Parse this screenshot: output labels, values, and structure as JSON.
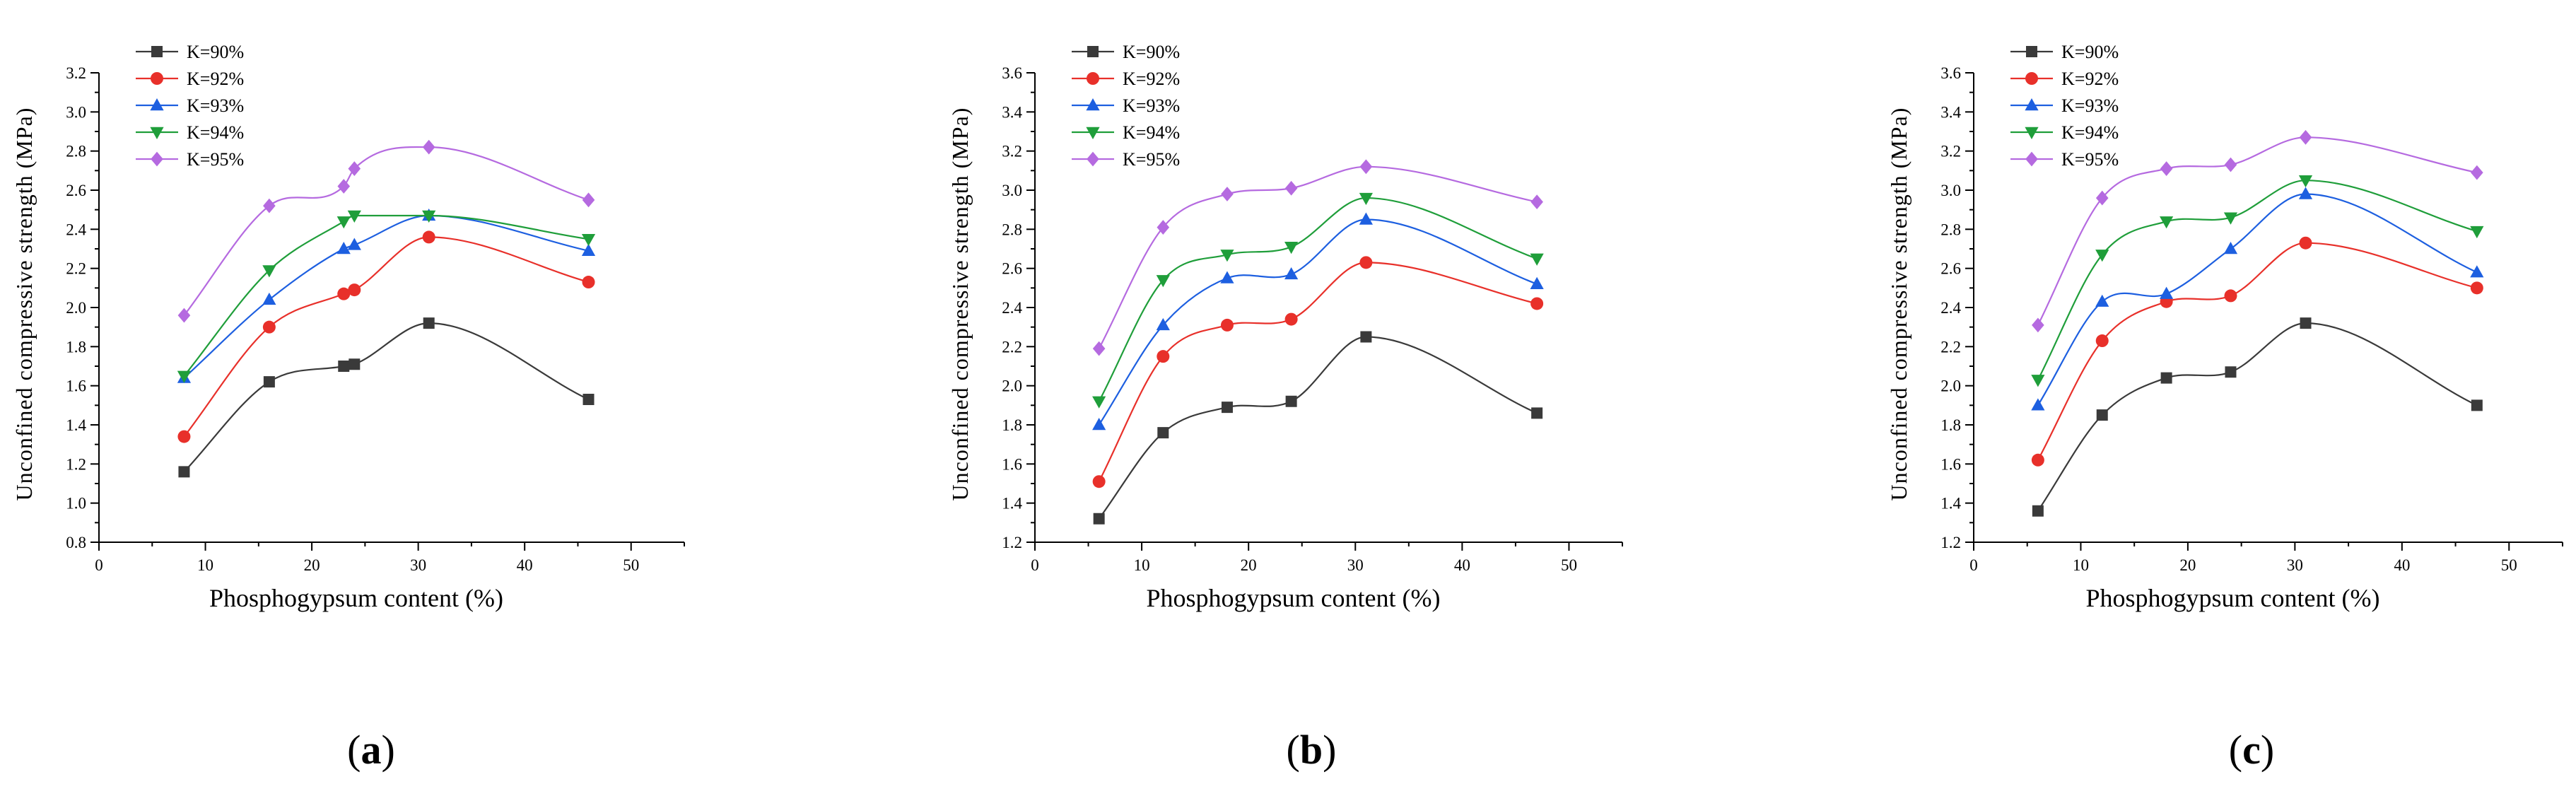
{
  "colors": {
    "K=90%": "#3a3a3a",
    "K=92%": "#e8302a",
    "K=93%": "#1d5fe0",
    "K=94%": "#1f9e3a",
    "K=95%": "#b56ae0"
  },
  "chart_data": [
    {
      "type": "line",
      "caption_letter": "a",
      "xlabel": "Phosphogypsum content (%)",
      "ylabel": "Unconfined compressive strength (MPa)",
      "xlim": [
        0,
        55
      ],
      "ylim": [
        0.8,
        3.2
      ],
      "xticks": [
        "0",
        "10",
        "20",
        "30",
        "40",
        "50"
      ],
      "yticks": [
        "0.8",
        "1.0",
        "1.2",
        "1.4",
        "1.6",
        "1.8",
        "2.0",
        "2.2",
        "2.4",
        "2.6",
        "2.8",
        "3.0",
        "3.2"
      ],
      "series": [
        {
          "name": "K=90%",
          "marker": "square",
          "x": [
            8,
            16,
            23,
            24,
            31,
            46
          ],
          "y": [
            1.16,
            1.62,
            1.7,
            1.71,
            1.92,
            1.53
          ]
        },
        {
          "name": "K=92%",
          "marker": "circle",
          "x": [
            8,
            16,
            23,
            24,
            31,
            46
          ],
          "y": [
            1.34,
            1.9,
            2.07,
            2.09,
            2.36,
            2.13
          ]
        },
        {
          "name": "K=93%",
          "marker": "triangle-up",
          "x": [
            8,
            16,
            23,
            24,
            31,
            46
          ],
          "y": [
            1.64,
            2.04,
            2.3,
            2.32,
            2.47,
            2.29
          ]
        },
        {
          "name": "K=94%",
          "marker": "triangle-down",
          "x": [
            8,
            16,
            23,
            24,
            31,
            46
          ],
          "y": [
            1.65,
            2.19,
            2.44,
            2.47,
            2.47,
            2.35
          ]
        },
        {
          "name": "K=95%",
          "marker": "diamond",
          "x": [
            8,
            16,
            23,
            24,
            31,
            46
          ],
          "y": [
            1.96,
            2.52,
            2.62,
            2.71,
            2.82,
            2.55
          ]
        }
      ]
    },
    {
      "type": "line",
      "caption_letter": "b",
      "xlabel": "Phosphogypsum content (%)",
      "ylabel": "Unconfined compressive strength (MPa)",
      "xlim": [
        0,
        55
      ],
      "ylim": [
        1.2,
        3.6
      ],
      "xticks": [
        "0",
        "10",
        "20",
        "30",
        "40",
        "50"
      ],
      "yticks": [
        "1.2",
        "1.4",
        "1.6",
        "1.8",
        "2.0",
        "2.2",
        "2.4",
        "2.6",
        "2.8",
        "3.0",
        "3.2",
        "3.4",
        "3.6"
      ],
      "series": [
        {
          "name": "K=90%",
          "marker": "square",
          "x": [
            6,
            12,
            18,
            24,
            31,
            47
          ],
          "y": [
            1.32,
            1.76,
            1.89,
            1.92,
            2.25,
            1.86
          ]
        },
        {
          "name": "K=92%",
          "marker": "circle",
          "x": [
            6,
            12,
            18,
            24,
            31,
            47
          ],
          "y": [
            1.51,
            2.15,
            2.31,
            2.34,
            2.63,
            2.42
          ]
        },
        {
          "name": "K=93%",
          "marker": "triangle-up",
          "x": [
            6,
            12,
            18,
            24,
            31,
            47
          ],
          "y": [
            1.8,
            2.31,
            2.55,
            2.57,
            2.85,
            2.52
          ]
        },
        {
          "name": "K=94%",
          "marker": "triangle-down",
          "x": [
            6,
            12,
            18,
            24,
            31,
            47
          ],
          "y": [
            1.92,
            2.54,
            2.67,
            2.71,
            2.96,
            2.65
          ]
        },
        {
          "name": "K=95%",
          "marker": "diamond",
          "x": [
            6,
            12,
            18,
            24,
            31,
            47
          ],
          "y": [
            2.19,
            2.81,
            2.98,
            3.01,
            3.12,
            2.94
          ]
        }
      ]
    },
    {
      "type": "line",
      "caption_letter": "c",
      "xlabel": "Phosphogypsum content (%)",
      "ylabel": "Unconfined compressive strength (MPa)",
      "xlim": [
        0,
        55
      ],
      "ylim": [
        1.2,
        3.6
      ],
      "xticks": [
        "0",
        "10",
        "20",
        "30",
        "40",
        "50"
      ],
      "yticks": [
        "1.2",
        "1.4",
        "1.6",
        "1.8",
        "2.0",
        "2.2",
        "2.4",
        "2.6",
        "2.8",
        "3.0",
        "3.2",
        "3.4",
        "3.6"
      ],
      "series": [
        {
          "name": "K=90%",
          "marker": "square",
          "x": [
            6,
            12,
            18,
            24,
            31,
            47
          ],
          "y": [
            1.36,
            1.85,
            2.04,
            2.07,
            2.32,
            1.9
          ]
        },
        {
          "name": "K=92%",
          "marker": "circle",
          "x": [
            6,
            12,
            18,
            24,
            31,
            47
          ],
          "y": [
            1.62,
            2.23,
            2.43,
            2.46,
            2.73,
            2.5
          ]
        },
        {
          "name": "K=93%",
          "marker": "triangle-up",
          "x": [
            6,
            12,
            18,
            24,
            31,
            47
          ],
          "y": [
            1.9,
            2.43,
            2.47,
            2.7,
            2.98,
            2.58
          ]
        },
        {
          "name": "K=94%",
          "marker": "triangle-down",
          "x": [
            6,
            12,
            18,
            24,
            31,
            47
          ],
          "y": [
            2.03,
            2.67,
            2.84,
            2.86,
            3.05,
            2.79
          ]
        },
        {
          "name": "K=95%",
          "marker": "diamond",
          "x": [
            6,
            12,
            18,
            24,
            31,
            47
          ],
          "y": [
            2.31,
            2.96,
            3.11,
            3.13,
            3.27,
            3.09
          ]
        }
      ]
    }
  ]
}
